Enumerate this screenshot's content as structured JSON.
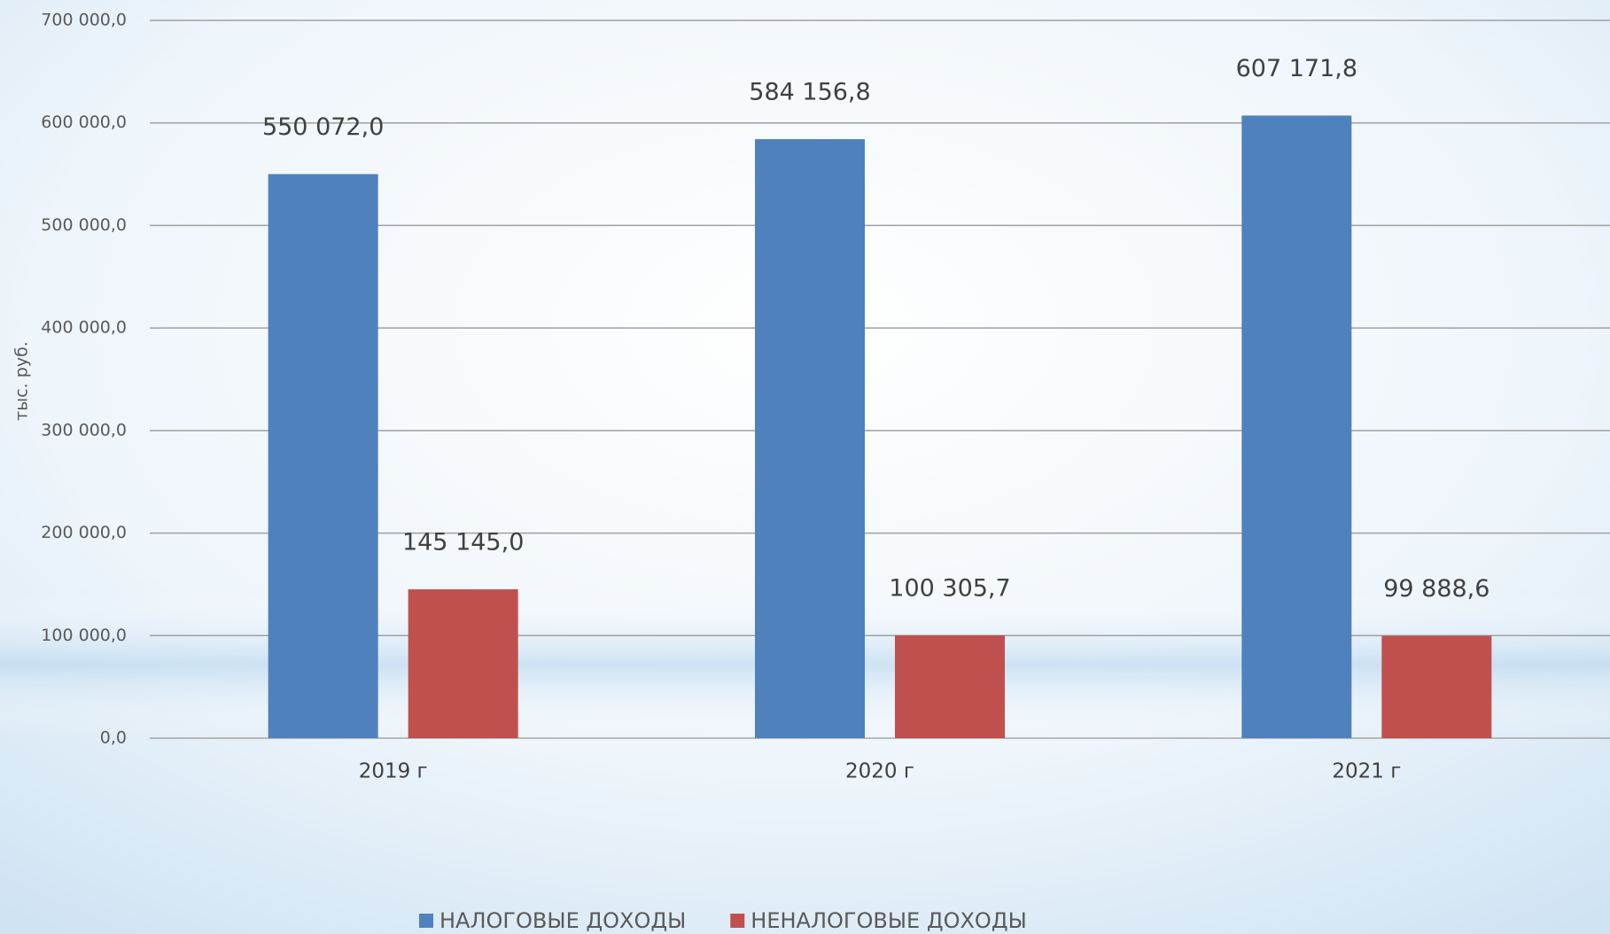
{
  "chart_data": {
    "type": "bar",
    "y_axis_label": "тыс. руб.",
    "categories": [
      "2019 г",
      "2020 г",
      "2021 г"
    ],
    "series": [
      {
        "name": "НАЛОГОВЫЕ ДОХОДЫ",
        "color": "#4f81bd",
        "values": [
          550072.0,
          584156.8,
          607171.8
        ],
        "value_labels": [
          "550 072,0",
          "584 156,8",
          "607 171,8"
        ]
      },
      {
        "name": "НЕНАЛОГОВЫЕ ДОХОДЫ",
        "color": "#c0504d",
        "values": [
          145145.0,
          100305.7,
          99888.6
        ],
        "value_labels": [
          "145 145,0",
          "100 305,7",
          "99 888,6"
        ]
      }
    ],
    "ylim": [
      0,
      700000
    ],
    "yticks": [
      {
        "value": 0,
        "label": "0,0"
      },
      {
        "value": 100000,
        "label": "100 000,0"
      },
      {
        "value": 200000,
        "label": "200 000,0"
      },
      {
        "value": 300000,
        "label": "300 000,0"
      },
      {
        "value": 400000,
        "label": "400 000,0"
      },
      {
        "value": 500000,
        "label": "500 000,0"
      },
      {
        "value": 600000,
        "label": "600 000,0"
      },
      {
        "value": 700000,
        "label": "700 000,0"
      }
    ],
    "grid": true,
    "legend": "bottom"
  }
}
